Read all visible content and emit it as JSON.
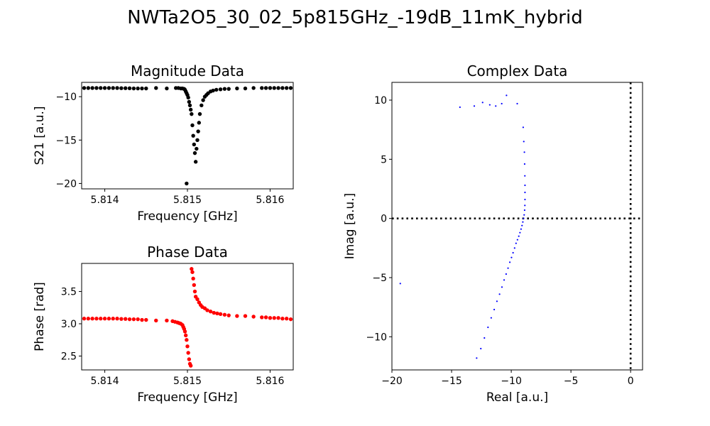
{
  "figure": {
    "suptitle": "NWTa2O5_30_02_5p815GHz_-19dB_11mK_hybrid"
  },
  "chart_data": [
    {
      "id": "magnitude",
      "type": "scatter",
      "title": "Magnitude Data",
      "xlabel": "Frequency [GHz]",
      "ylabel": "S21 [a.u.]",
      "xlim": [
        5.81372,
        5.81628
      ],
      "ylim": [
        -20.62,
        -8.35
      ],
      "xticks": [
        5.814,
        5.815,
        5.816
      ],
      "xticklabels": [
        "5.814",
        "5.815",
        "5.816"
      ],
      "yticks": [
        -20,
        -15,
        -10
      ],
      "yticklabels": [
        "−20",
        "−15",
        "−10"
      ],
      "color": "#000000",
      "points": [
        [
          5.81375,
          -9.0
        ],
        [
          5.8138,
          -9.0
        ],
        [
          5.81385,
          -9.0
        ],
        [
          5.8139,
          -9.0
        ],
        [
          5.81395,
          -9.0
        ],
        [
          5.814,
          -9.0
        ],
        [
          5.81405,
          -9.0
        ],
        [
          5.8141,
          -9.0
        ],
        [
          5.81415,
          -9.0
        ],
        [
          5.8142,
          -9.02
        ],
        [
          5.81425,
          -9.02
        ],
        [
          5.8143,
          -9.03
        ],
        [
          5.81435,
          -9.05
        ],
        [
          5.8144,
          -9.05
        ],
        [
          5.81445,
          -9.05
        ],
        [
          5.8145,
          -9.05
        ],
        [
          5.81462,
          -9.0
        ],
        [
          5.81475,
          -9.05
        ],
        [
          5.81486,
          -9.0
        ],
        [
          5.81489,
          -9.0
        ],
        [
          5.81492,
          -9.05
        ],
        [
          5.81494,
          -9.05
        ],
        [
          5.81496,
          -9.1
        ],
        [
          5.81497,
          -9.2
        ],
        [
          5.81498,
          -9.4
        ],
        [
          5.81499,
          -9.6
        ],
        [
          5.815,
          -9.8
        ],
        [
          5.81501,
          -10.1
        ],
        [
          5.81502,
          -10.6
        ],
        [
          5.81503,
          -11.0
        ],
        [
          5.81504,
          -11.5
        ],
        [
          5.81505,
          -12.0
        ],
        [
          5.81506,
          -13.3
        ],
        [
          5.81507,
          -14.5
        ],
        [
          5.81508,
          -15.5
        ],
        [
          5.81509,
          -16.5
        ],
        [
          5.8151,
          -17.5
        ],
        [
          5.81511,
          -16.0
        ],
        [
          5.81512,
          -15.0
        ],
        [
          5.81513,
          -14.0
        ],
        [
          5.81514,
          -13.0
        ],
        [
          5.81515,
          -12.0
        ],
        [
          5.81517,
          -11.0
        ],
        [
          5.81519,
          -10.4
        ],
        [
          5.81521,
          -10.0
        ],
        [
          5.81523,
          -9.8
        ],
        [
          5.81525,
          -9.6
        ],
        [
          5.81528,
          -9.4
        ],
        [
          5.81531,
          -9.3
        ],
        [
          5.81535,
          -9.2
        ],
        [
          5.8154,
          -9.15
        ],
        [
          5.81545,
          -9.1
        ],
        [
          5.8155,
          -9.1
        ],
        [
          5.8156,
          -9.05
        ],
        [
          5.8157,
          -9.05
        ],
        [
          5.8158,
          -9.0
        ],
        [
          5.81499,
          -20.0
        ],
        [
          5.8159,
          -9.0
        ],
        [
          5.81595,
          -9.0
        ],
        [
          5.816,
          -9.0
        ],
        [
          5.81605,
          -9.0
        ],
        [
          5.8161,
          -9.0
        ],
        [
          5.81615,
          -9.0
        ],
        [
          5.8162,
          -9.0
        ],
        [
          5.81625,
          -9.0
        ]
      ]
    },
    {
      "id": "phase",
      "type": "scatter",
      "title": "Phase Data",
      "xlabel": "Frequency [GHz]",
      "ylabel": "Phase [rad]",
      "xlim": [
        5.81372,
        5.81628
      ],
      "ylim": [
        2.285,
        3.935
      ],
      "xticks": [
        5.814,
        5.815,
        5.816
      ],
      "xticklabels": [
        "5.814",
        "5.815",
        "5.816"
      ],
      "yticks": [
        2.5,
        3.0,
        3.5
      ],
      "yticklabels": [
        "2.5",
        "3.0",
        "3.5"
      ],
      "color": "#ff0000",
      "points": [
        [
          5.81375,
          3.08
        ],
        [
          5.8138,
          3.08
        ],
        [
          5.81385,
          3.08
        ],
        [
          5.8139,
          3.08
        ],
        [
          5.81395,
          3.08
        ],
        [
          5.814,
          3.08
        ],
        [
          5.81405,
          3.08
        ],
        [
          5.8141,
          3.08
        ],
        [
          5.81415,
          3.08
        ],
        [
          5.8142,
          3.075
        ],
        [
          5.81425,
          3.075
        ],
        [
          5.8143,
          3.07
        ],
        [
          5.81435,
          3.07
        ],
        [
          5.8144,
          3.07
        ],
        [
          5.81445,
          3.06
        ],
        [
          5.8145,
          3.06
        ],
        [
          5.81462,
          3.05
        ],
        [
          5.81475,
          3.05
        ],
        [
          5.81482,
          3.04
        ],
        [
          5.81485,
          3.03
        ],
        [
          5.81488,
          3.02
        ],
        [
          5.8149,
          3.01
        ],
        [
          5.81492,
          3.0
        ],
        [
          5.81494,
          2.98
        ],
        [
          5.81495,
          2.95
        ],
        [
          5.81496,
          2.92
        ],
        [
          5.81497,
          2.88
        ],
        [
          5.81498,
          2.82
        ],
        [
          5.81499,
          2.75
        ],
        [
          5.815,
          2.65
        ],
        [
          5.81501,
          2.55
        ],
        [
          5.81502,
          2.45
        ],
        [
          5.81503,
          2.38
        ],
        [
          5.81504,
          2.35
        ],
        [
          5.81505,
          3.85
        ],
        [
          5.81506,
          3.8
        ],
        [
          5.81507,
          3.7
        ],
        [
          5.81508,
          3.6
        ],
        [
          5.81509,
          3.5
        ],
        [
          5.8151,
          3.42
        ],
        [
          5.81512,
          3.38
        ],
        [
          5.81514,
          3.33
        ],
        [
          5.81516,
          3.29
        ],
        [
          5.81518,
          3.26
        ],
        [
          5.81521,
          3.24
        ],
        [
          5.81524,
          3.21
        ],
        [
          5.81528,
          3.19
        ],
        [
          5.81532,
          3.17
        ],
        [
          5.81536,
          3.16
        ],
        [
          5.8154,
          3.15
        ],
        [
          5.81545,
          3.14
        ],
        [
          5.8155,
          3.13
        ],
        [
          5.8156,
          3.12
        ],
        [
          5.8157,
          3.12
        ],
        [
          5.8158,
          3.11
        ],
        [
          5.8159,
          3.1
        ],
        [
          5.81595,
          3.1
        ],
        [
          5.816,
          3.09
        ],
        [
          5.81605,
          3.09
        ],
        [
          5.8161,
          3.09
        ],
        [
          5.81615,
          3.08
        ],
        [
          5.8162,
          3.08
        ],
        [
          5.81625,
          3.07
        ]
      ]
    },
    {
      "id": "complex",
      "type": "scatter",
      "title": "Complex Data",
      "xlabel": "Real [a.u.]",
      "ylabel": "Imag [a.u.]",
      "xlim": [
        -20.0,
        1.0
      ],
      "ylim": [
        -12.8,
        11.5
      ],
      "xticks": [
        -20,
        -15,
        -10,
        -5,
        0
      ],
      "xticklabels": [
        "−20",
        "−15",
        "−10",
        "−5",
        "0"
      ],
      "yticks": [
        -10,
        -5,
        0,
        5,
        10
      ],
      "yticklabels": [
        "−10",
        "−5",
        "0",
        "5",
        "10"
      ],
      "color": "#0000ff",
      "zero_lines": true,
      "points": [
        [
          -19.3,
          -5.5
        ],
        [
          -14.3,
          9.4
        ],
        [
          -13.1,
          9.5
        ],
        [
          -12.4,
          9.8
        ],
        [
          -11.8,
          9.6
        ],
        [
          -11.3,
          9.5
        ],
        [
          -10.8,
          9.7
        ],
        [
          -10.4,
          10.4
        ],
        [
          -9.5,
          9.7
        ],
        [
          -9.0,
          7.7
        ],
        [
          -8.95,
          6.5
        ],
        [
          -8.9,
          5.6
        ],
        [
          -8.88,
          4.6
        ],
        [
          -8.86,
          3.6
        ],
        [
          -8.85,
          2.8
        ],
        [
          -8.85,
          2.2
        ],
        [
          -8.85,
          1.6
        ],
        [
          -8.86,
          1.1
        ],
        [
          -8.88,
          0.7
        ],
        [
          -8.92,
          0.3
        ],
        [
          -8.97,
          0.0
        ],
        [
          -9.03,
          -0.3
        ],
        [
          -9.1,
          -0.6
        ],
        [
          -9.18,
          -0.9
        ],
        [
          -9.27,
          -1.2
        ],
        [
          -9.37,
          -1.5
        ],
        [
          -9.48,
          -1.8
        ],
        [
          -9.6,
          -2.1
        ],
        [
          -9.72,
          -2.5
        ],
        [
          -9.85,
          -2.9
        ],
        [
          -9.98,
          -3.3
        ],
        [
          -10.12,
          -3.7
        ],
        [
          -10.27,
          -4.2
        ],
        [
          -10.43,
          -4.7
        ],
        [
          -10.6,
          -5.2
        ],
        [
          -10.78,
          -5.8
        ],
        [
          -10.98,
          -6.4
        ],
        [
          -11.2,
          -7.0
        ],
        [
          -11.43,
          -7.7
        ],
        [
          -11.68,
          -8.4
        ],
        [
          -11.95,
          -9.2
        ],
        [
          -12.25,
          -10.1
        ],
        [
          -12.55,
          -11.0
        ],
        [
          -12.9,
          -11.8
        ]
      ]
    }
  ]
}
